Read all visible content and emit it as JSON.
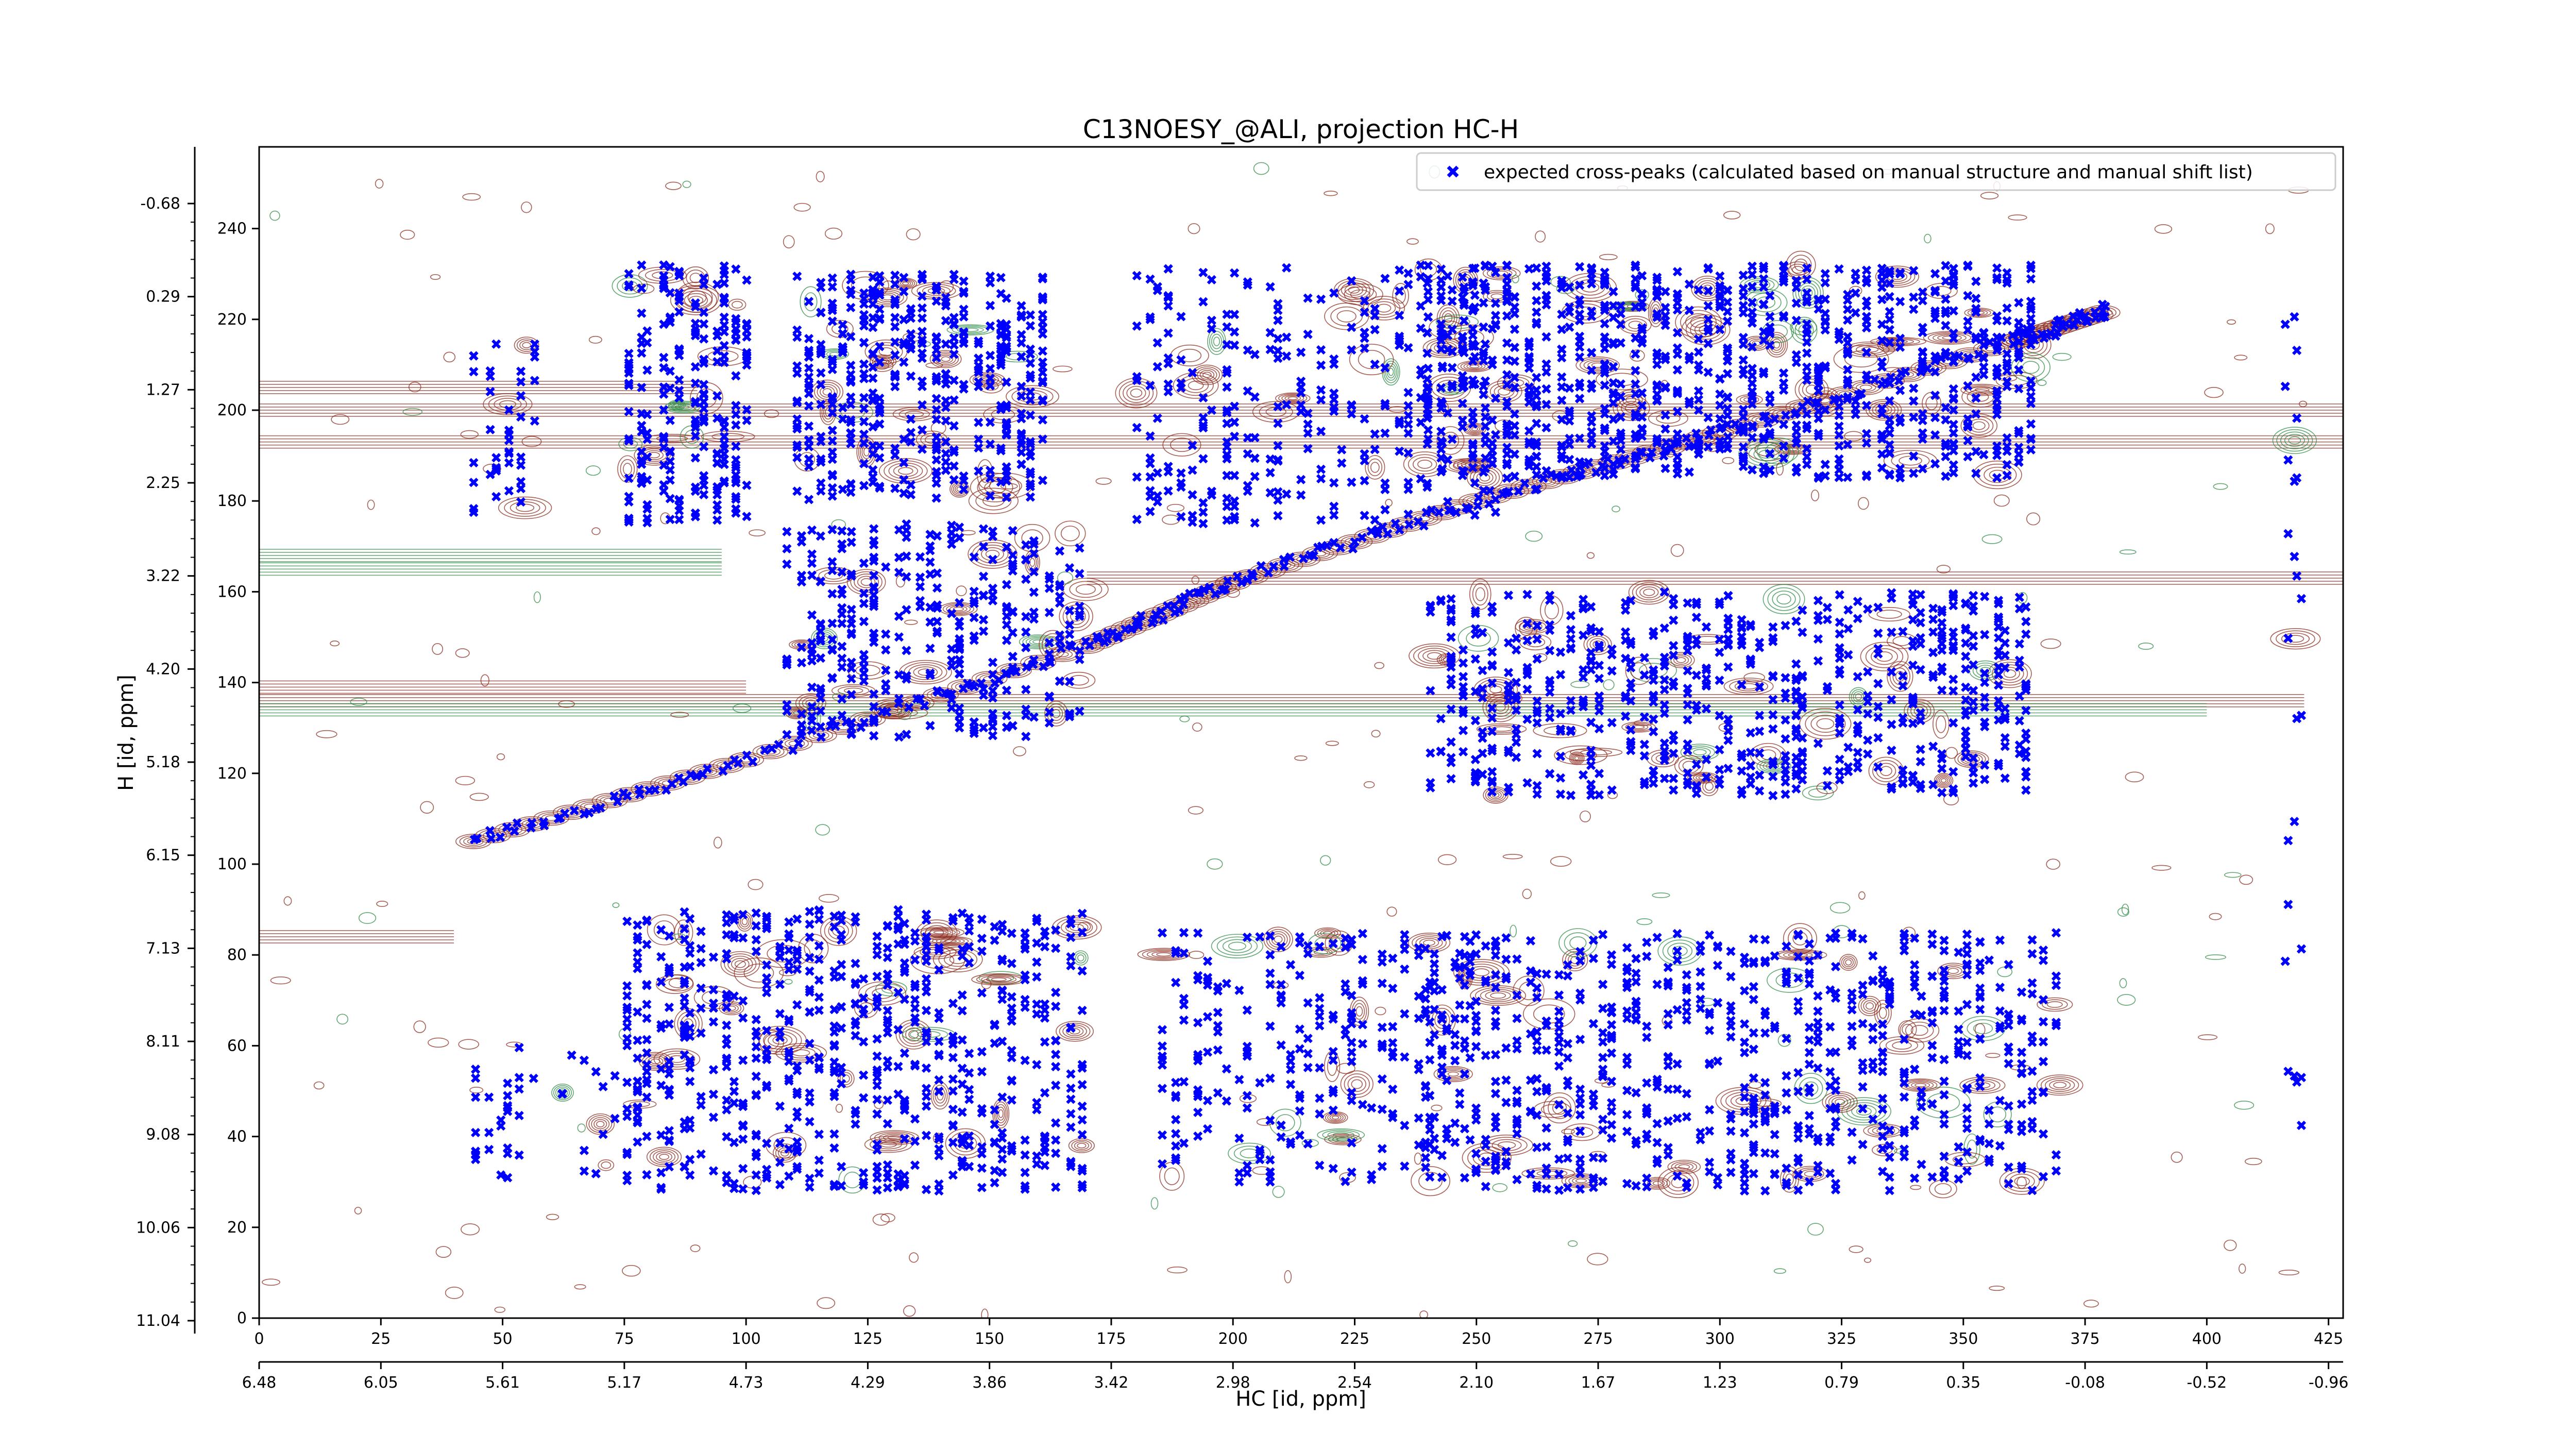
{
  "chart_data": {
    "type": "scatter",
    "title": "C13NOESY_@ALI, projection HC-H",
    "xlabel": "HC [id, ppm]",
    "ylabel": "H [id, ppm]",
    "xlim": [
      0,
      428
    ],
    "ylim": [
      0,
      258
    ],
    "grid": false,
    "legend_position": "top-right",
    "x_ticks_index": [
      0,
      25,
      50,
      75,
      100,
      125,
      150,
      175,
      200,
      225,
      250,
      275,
      300,
      325,
      350,
      375,
      400,
      425
    ],
    "y_ticks_index": [
      0,
      20,
      40,
      60,
      80,
      100,
      120,
      140,
      160,
      180,
      200,
      220,
      240
    ],
    "x_ticks_ppm": [
      "6.48",
      "6.05",
      "5.61",
      "5.17",
      "4.73",
      "4.29",
      "3.86",
      "3.42",
      "2.98",
      "2.54",
      "2.10",
      "1.67",
      "1.23",
      "0.79",
      "0.35",
      "-0.08",
      "-0.52",
      "-0.96"
    ],
    "y_ticks_ppm": [
      "11.04",
      "10.06",
      "9.08",
      "8.11",
      "7.13",
      "6.15",
      "5.18",
      "4.20",
      "3.22",
      "2.25",
      "1.27",
      "0.29",
      "-0.68"
    ],
    "series": [
      {
        "name": "expected cross-peaks (calculated based on manual structure and manual shift list)",
        "color": "#0000ff",
        "marker": "x",
        "note_clusters": "points summarized as clusters in index units",
        "clusters": [
          {
            "x": [
              44,
              58
            ],
            "y": [
              176,
              215
            ],
            "n": 40
          },
          {
            "x": [
              75,
              102
            ],
            "y": [
              175,
              232
            ],
            "n": 220
          },
          {
            "x": [
              110,
              162
            ],
            "y": [
              180,
              230
            ],
            "n": 420
          },
          {
            "x": [
              108,
              170
            ],
            "y": [
              128,
              175
            ],
            "n": 320
          },
          {
            "x": [
              180,
              255
            ],
            "y": [
              175,
              232
            ],
            "n": 300
          },
          {
            "x": [
              240,
              365
            ],
            "y": [
              185,
              232
            ],
            "n": 900
          },
          {
            "x": [
              240,
              365
            ],
            "y": [
              115,
              160
            ],
            "n": 650
          },
          {
            "x": [
              75,
              170
            ],
            "y": [
              28,
              90
            ],
            "n": 650
          },
          {
            "x": [
              185,
              250
            ],
            "y": [
              30,
              85
            ],
            "n": 250
          },
          {
            "x": [
              240,
              370
            ],
            "y": [
              28,
              85
            ],
            "n": 700
          },
          {
            "x": [
              44,
              75
            ],
            "y": [
              30,
              60
            ],
            "n": 40
          },
          {
            "x": [
              415,
              420
            ],
            "y": [
              35,
              225
            ],
            "n": 25
          }
        ],
        "diagonal": [
          [
            44,
            105
          ],
          [
            100,
            123
          ],
          [
            170,
            148
          ],
          [
            200,
            162
          ],
          [
            250,
            180
          ],
          [
            300,
            195
          ],
          [
            360,
            215
          ],
          [
            380,
            222
          ]
        ]
      }
    ]
  }
}
